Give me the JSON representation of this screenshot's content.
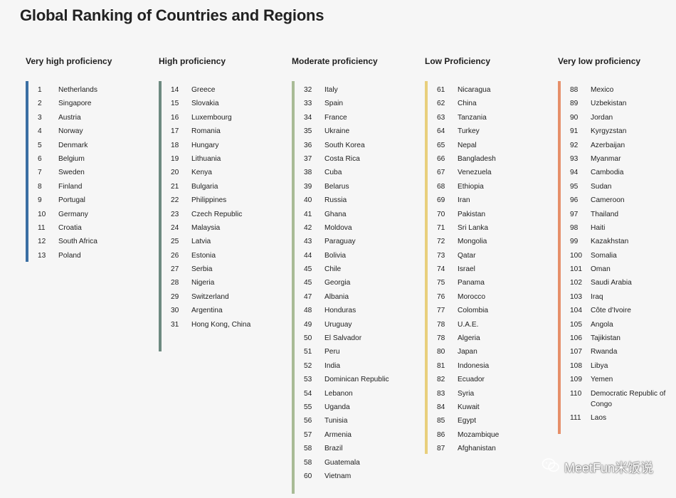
{
  "title": "Global Ranking of Countries and Regions",
  "columns": [
    {
      "heading": "Very high proficiency",
      "color": "#3b6fa3",
      "items": [
        {
          "rank": "1",
          "name": "Netherlands"
        },
        {
          "rank": "2",
          "name": "Singapore"
        },
        {
          "rank": "3",
          "name": "Austria"
        },
        {
          "rank": "4",
          "name": "Norway"
        },
        {
          "rank": "5",
          "name": "Denmark"
        },
        {
          "rank": "6",
          "name": "Belgium"
        },
        {
          "rank": "7",
          "name": "Sweden"
        },
        {
          "rank": "8",
          "name": "Finland"
        },
        {
          "rank": "9",
          "name": "Portugal"
        },
        {
          "rank": "10",
          "name": "Germany"
        },
        {
          "rank": "11",
          "name": "Croatia"
        },
        {
          "rank": "12",
          "name": "South Africa"
        },
        {
          "rank": "13",
          "name": "Poland"
        }
      ]
    },
    {
      "heading": "High proficiency",
      "color": "#6d8a80",
      "items": [
        {
          "rank": "14",
          "name": "Greece"
        },
        {
          "rank": "15",
          "name": "Slovakia"
        },
        {
          "rank": "16",
          "name": "Luxembourg"
        },
        {
          "rank": "17",
          "name": "Romania"
        },
        {
          "rank": "18",
          "name": "Hungary"
        },
        {
          "rank": "19",
          "name": "Lithuania"
        },
        {
          "rank": "20",
          "name": "Kenya"
        },
        {
          "rank": "21",
          "name": "Bulgaria"
        },
        {
          "rank": "22",
          "name": "Philippines"
        },
        {
          "rank": "23",
          "name": "Czech Republic"
        },
        {
          "rank": "24",
          "name": "Malaysia"
        },
        {
          "rank": "25",
          "name": "Latvia"
        },
        {
          "rank": "26",
          "name": "Estonia"
        },
        {
          "rank": "27",
          "name": "Serbia"
        },
        {
          "rank": "28",
          "name": "Nigeria"
        },
        {
          "rank": "29",
          "name": "Switzerland"
        },
        {
          "rank": "30",
          "name": "Argentina"
        },
        {
          "rank": "31",
          "name": "Hong Kong, China"
        }
      ]
    },
    {
      "heading": "Moderate proficiency",
      "color": "#a9bb96",
      "items": [
        {
          "rank": "32",
          "name": "Italy"
        },
        {
          "rank": "33",
          "name": "Spain"
        },
        {
          "rank": "34",
          "name": "France"
        },
        {
          "rank": "35",
          "name": "Ukraine"
        },
        {
          "rank": "36",
          "name": "South Korea"
        },
        {
          "rank": "37",
          "name": "Costa Rica"
        },
        {
          "rank": "38",
          "name": "Cuba"
        },
        {
          "rank": "39",
          "name": "Belarus"
        },
        {
          "rank": "40",
          "name": "Russia"
        },
        {
          "rank": "41",
          "name": "Ghana"
        },
        {
          "rank": "42",
          "name": "Moldova"
        },
        {
          "rank": "43",
          "name": "Paraguay"
        },
        {
          "rank": "44",
          "name": "Bolivia"
        },
        {
          "rank": "45",
          "name": "Chile"
        },
        {
          "rank": "45",
          "name": "Georgia"
        },
        {
          "rank": "47",
          "name": "Albania"
        },
        {
          "rank": "48",
          "name": "Honduras"
        },
        {
          "rank": "49",
          "name": "Uruguay"
        },
        {
          "rank": "50",
          "name": "El Salvador"
        },
        {
          "rank": "51",
          "name": "Peru"
        },
        {
          "rank": "52",
          "name": "India"
        },
        {
          "rank": "53",
          "name": "Dominican Republic"
        },
        {
          "rank": "54",
          "name": "Lebanon"
        },
        {
          "rank": "55",
          "name": "Uganda"
        },
        {
          "rank": "56",
          "name": "Tunisia"
        },
        {
          "rank": "57",
          "name": "Armenia"
        },
        {
          "rank": "58",
          "name": "Brazil"
        },
        {
          "rank": "58",
          "name": "Guatemala"
        },
        {
          "rank": "60",
          "name": "Vietnam"
        }
      ]
    },
    {
      "heading": "Low Proficiency",
      "color": "#e8cf7c",
      "items": [
        {
          "rank": "61",
          "name": "Nicaragua"
        },
        {
          "rank": "62",
          "name": "China"
        },
        {
          "rank": "63",
          "name": "Tanzania"
        },
        {
          "rank": "64",
          "name": "Turkey"
        },
        {
          "rank": "65",
          "name": "Nepal"
        },
        {
          "rank": "66",
          "name": "Bangladesh"
        },
        {
          "rank": "67",
          "name": "Venezuela"
        },
        {
          "rank": "68",
          "name": "Ethiopia"
        },
        {
          "rank": "69",
          "name": "Iran"
        },
        {
          "rank": "70",
          "name": "Pakistan"
        },
        {
          "rank": "71",
          "name": "Sri Lanka"
        },
        {
          "rank": "72",
          "name": "Mongolia"
        },
        {
          "rank": "73",
          "name": "Qatar"
        },
        {
          "rank": "74",
          "name": "Israel"
        },
        {
          "rank": "75",
          "name": "Panama"
        },
        {
          "rank": "76",
          "name": "Morocco"
        },
        {
          "rank": "77",
          "name": "Colombia"
        },
        {
          "rank": "78",
          "name": "U.A.E."
        },
        {
          "rank": "78",
          "name": "Algeria"
        },
        {
          "rank": "80",
          "name": "Japan"
        },
        {
          "rank": "81",
          "name": "Indonesia"
        },
        {
          "rank": "82",
          "name": "Ecuador"
        },
        {
          "rank": "83",
          "name": "Syria"
        },
        {
          "rank": "84",
          "name": "Kuwait"
        },
        {
          "rank": "85",
          "name": "Egypt"
        },
        {
          "rank": "86",
          "name": "Mozambique"
        },
        {
          "rank": "87",
          "name": "Afghanistan"
        }
      ]
    },
    {
      "heading": "Very low proficiency",
      "color": "#e6906a",
      "items": [
        {
          "rank": "88",
          "name": "Mexico"
        },
        {
          "rank": "89",
          "name": "Uzbekistan"
        },
        {
          "rank": "90",
          "name": "Jordan"
        },
        {
          "rank": "91",
          "name": "Kyrgyzstan"
        },
        {
          "rank": "92",
          "name": "Azerbaijan"
        },
        {
          "rank": "93",
          "name": "Myanmar"
        },
        {
          "rank": "94",
          "name": "Cambodia"
        },
        {
          "rank": "95",
          "name": "Sudan"
        },
        {
          "rank": "96",
          "name": "Cameroon"
        },
        {
          "rank": "97",
          "name": "Thailand"
        },
        {
          "rank": "98",
          "name": "Haiti"
        },
        {
          "rank": "99",
          "name": "Kazakhstan"
        },
        {
          "rank": "100",
          "name": "Somalia"
        },
        {
          "rank": "101",
          "name": "Oman"
        },
        {
          "rank": "102",
          "name": "Saudi Arabia"
        },
        {
          "rank": "103",
          "name": "Iraq"
        },
        {
          "rank": "104",
          "name": "Côte d'Ivoire"
        },
        {
          "rank": "105",
          "name": "Angola"
        },
        {
          "rank": "106",
          "name": "Tajikistan"
        },
        {
          "rank": "107",
          "name": "Rwanda"
        },
        {
          "rank": "108",
          "name": "Libya"
        },
        {
          "rank": "109",
          "name": "Yemen"
        },
        {
          "rank": "110",
          "name": "Democratic Republic of Congo"
        },
        {
          "rank": "111",
          "name": "Laos"
        }
      ]
    }
  ],
  "watermark": {
    "text": "MeetFun米饭说",
    "icon": "wechat-icon"
  }
}
